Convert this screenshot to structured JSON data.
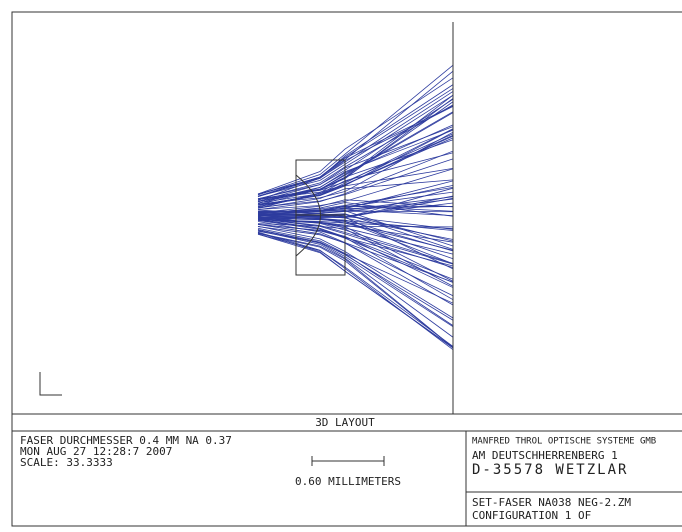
{
  "layout_title": "3D LAYOUT",
  "info": {
    "lines": [
      "FASER DURCHMESSER 0.4 MM NA 0.37",
      "MON AUG 27 12:28:7 2007",
      "SCALE:   33.3333"
    ],
    "scale_bar_label": "0.60 MILLIMETERS"
  },
  "company": {
    "lines": [
      "MANFRED THROL OPTISCHE SYSTEME GMB",
      "AM DEUTSCHHERRENBERG 1",
      "D-35578 WETZLAR"
    ]
  },
  "config": {
    "lines": [
      "SET-FASER NA038 NEG-2.ZM",
      "CONFIGURATION 1 OF"
    ]
  }
}
